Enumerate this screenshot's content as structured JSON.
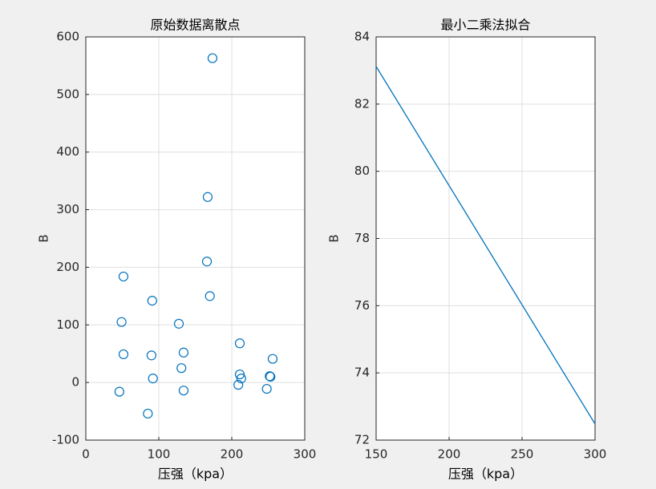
{
  "chart_data": [
    {
      "type": "scatter",
      "title": "原始数据离散点",
      "xlabel": "压强（kpa）",
      "ylabel": "B",
      "x": [
        173.6,
        167,
        166,
        51.6,
        91,
        170,
        49,
        127.5,
        51.6,
        90,
        134,
        211,
        256,
        131,
        92,
        211,
        213,
        252,
        253,
        209,
        248,
        134,
        46,
        85
      ],
      "values": [
        563,
        322,
        210,
        184,
        142,
        150,
        105,
        102,
        49,
        47,
        52,
        68,
        41,
        25,
        7,
        14,
        7,
        11,
        10,
        -4,
        -11,
        -14,
        -16,
        -54
      ],
      "color": "#0072bd",
      "xlim": [
        0,
        300
      ],
      "ylim": [
        -100,
        600
      ],
      "xticks": [
        0,
        100,
        200,
        300
      ],
      "yticks": [
        -100,
        0,
        100,
        200,
        300,
        400,
        500,
        600
      ],
      "grid": true
    },
    {
      "type": "line",
      "title": "最小二乘法拟合",
      "xlabel": "压强（kpa）",
      "ylabel": "B",
      "x": [
        150,
        300
      ],
      "values": [
        83.12,
        72.48
      ],
      "color": "#0072bd",
      "xlim": [
        150,
        300
      ],
      "ylim": [
        72,
        84
      ],
      "xticks": [
        150,
        200,
        250,
        300
      ],
      "yticks": [
        72,
        74,
        76,
        78,
        80,
        82,
        84
      ],
      "grid": true
    }
  ]
}
